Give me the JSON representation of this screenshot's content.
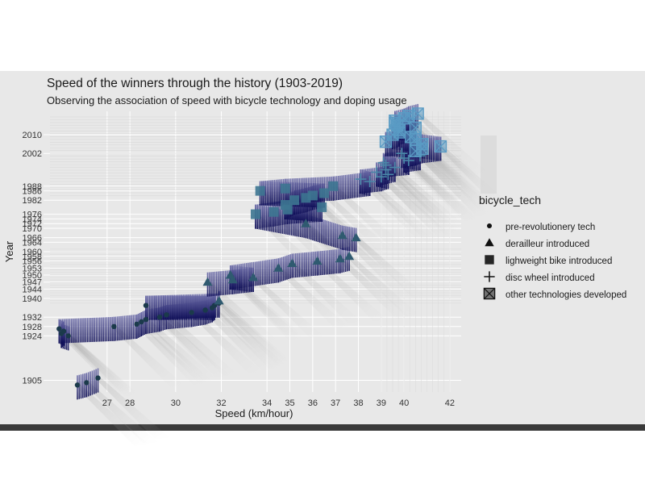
{
  "chart_data": {
    "type": "scatter",
    "title": "Speed of the winners through the history (1903-2019)",
    "subtitle": "Observing the association of speed with bicycle technology and doping usage",
    "xlabel": "Speed (km/hour)",
    "ylabel": "Year",
    "xlim": [
      24.5,
      42.5
    ],
    "ylim": [
      1900,
      2020
    ],
    "grid": true,
    "x_ticks": [
      27,
      28,
      30,
      32,
      34,
      35,
      36,
      37,
      38,
      39,
      40,
      42
    ],
    "y_ticks": [
      1905,
      1924,
      1928,
      1932,
      1940,
      1944,
      1947,
      1950,
      1953,
      1956,
      1958,
      1960,
      1964,
      1966,
      1970,
      1972,
      1974,
      1976,
      1982,
      1986,
      1988,
      2002,
      2010
    ],
    "legend": {
      "title": "bicycle_tech",
      "position": "right",
      "entries": [
        {
          "label": "pre-revolutionery tech",
          "shape": "circle"
        },
        {
          "label": "derailleur introduced",
          "shape": "triangle"
        },
        {
          "label": "lighweight bike introduced",
          "shape": "square"
        },
        {
          "label": "disc wheel introduced",
          "shape": "plus"
        },
        {
          "label": "other technologies developed",
          "shape": "square-cross"
        }
      ]
    },
    "colors": {
      "pre": "#1b3a4b",
      "derailleur": "#2f5a70",
      "lightweight": "#3d7591",
      "disc": "#4a87a8",
      "other": "#5a9bc4",
      "stripe": "#0d0d6b"
    },
    "series": [
      {
        "name": "pre-revolutionery tech",
        "shape": "circle",
        "color": "#1b3a4b",
        "points": [
          [
            25.7,
            1903
          ],
          [
            26.1,
            1904
          ],
          [
            26.6,
            1906
          ],
          [
            25.3,
            1924
          ],
          [
            25.0,
            1925
          ],
          [
            25.1,
            1926
          ],
          [
            24.9,
            1927
          ],
          [
            27.3,
            1928
          ],
          [
            28.3,
            1929
          ],
          [
            28.5,
            1930
          ],
          [
            28.7,
            1931
          ],
          [
            29.3,
            1932
          ],
          [
            29.6,
            1933
          ],
          [
            30.7,
            1934
          ],
          [
            31.3,
            1935
          ],
          [
            31.6,
            1936
          ],
          [
            31.7,
            1937
          ],
          [
            31.9,
            1938
          ],
          [
            28.7,
            1937
          ]
        ]
      },
      {
        "name": "derailleur introduced",
        "shape": "triangle",
        "color": "#2f5a70",
        "points": [
          [
            31.9,
            1939
          ],
          [
            31.4,
            1947
          ],
          [
            32.5,
            1948
          ],
          [
            33.4,
            1949
          ],
          [
            32.4,
            1950
          ],
          [
            34.5,
            1953
          ],
          [
            35.1,
            1955
          ],
          [
            36.2,
            1956
          ],
          [
            37.2,
            1957
          ],
          [
            37.6,
            1958
          ],
          [
            37.9,
            1966
          ],
          [
            37.3,
            1967
          ],
          [
            35.7,
            1972
          ]
        ]
      },
      {
        "name": "lighweight bike introduced",
        "shape": "square",
        "color": "#3d7591",
        "points": [
          [
            33.5,
            1976
          ],
          [
            34.3,
            1977
          ],
          [
            34.8,
            1980
          ],
          [
            35.2,
            1982
          ],
          [
            35.7,
            1983
          ],
          [
            36.0,
            1984
          ],
          [
            36.5,
            1985
          ],
          [
            33.7,
            1986
          ],
          [
            36.9,
            1988
          ],
          [
            34.8,
            1987
          ],
          [
            36.4,
            1979
          ],
          [
            34.9,
            1978
          ]
        ]
      },
      {
        "name": "disc wheel introduced",
        "shape": "plus",
        "color": "#4a87a8",
        "points": [
          [
            38.5,
            1990
          ],
          [
            38.1,
            1991
          ],
          [
            39.0,
            1992
          ],
          [
            39.3,
            1993
          ],
          [
            38.8,
            1994
          ],
          [
            39.2,
            1995
          ],
          [
            39.6,
            1996
          ],
          [
            39.2,
            1997
          ],
          [
            39.1,
            1998
          ],
          [
            40.2,
            1999
          ],
          [
            40.0,
            2000
          ],
          [
            40.7,
            2001
          ],
          [
            39.9,
            2002
          ]
        ]
      },
      {
        "name": "other technologies developed",
        "shape": "square-cross",
        "color": "#5a9bc4",
        "points": [
          [
            40.5,
            2003
          ],
          [
            40.8,
            2004
          ],
          [
            41.6,
            2005
          ],
          [
            40.8,
            2006
          ],
          [
            39.2,
            2007
          ],
          [
            40.5,
            2008
          ],
          [
            40.3,
            2009
          ],
          [
            39.5,
            2010
          ],
          [
            39.8,
            2011
          ],
          [
            39.8,
            2012
          ],
          [
            40.5,
            2013
          ],
          [
            39.7,
            2014
          ],
          [
            39.6,
            2015
          ],
          [
            39.6,
            2016
          ],
          [
            40.0,
            2017
          ],
          [
            40.2,
            2018
          ],
          [
            40.6,
            2019
          ]
        ]
      }
    ]
  }
}
